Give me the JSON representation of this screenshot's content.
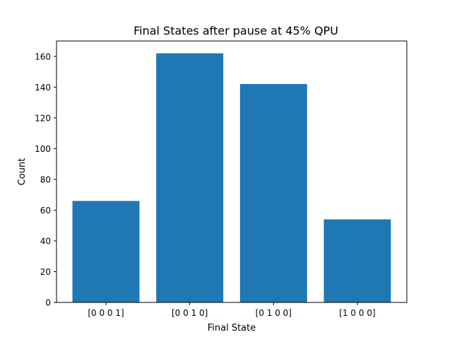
{
  "chart_data": {
    "type": "bar",
    "title": "Final States after pause at 45% QPU",
    "xlabel": "Final State",
    "ylabel": "Count",
    "categories": [
      "[0 0 0 1]",
      "[0 0 1 0]",
      "[0 1 0 0]",
      "[1 0 0 0]"
    ],
    "values": [
      66,
      162,
      142,
      54
    ],
    "ylim": [
      0,
      170
    ],
    "yticks": [
      0,
      20,
      40,
      60,
      80,
      100,
      120,
      140,
      160
    ],
    "grid": false,
    "legend": "none",
    "bar_color": "#1f77b4"
  }
}
